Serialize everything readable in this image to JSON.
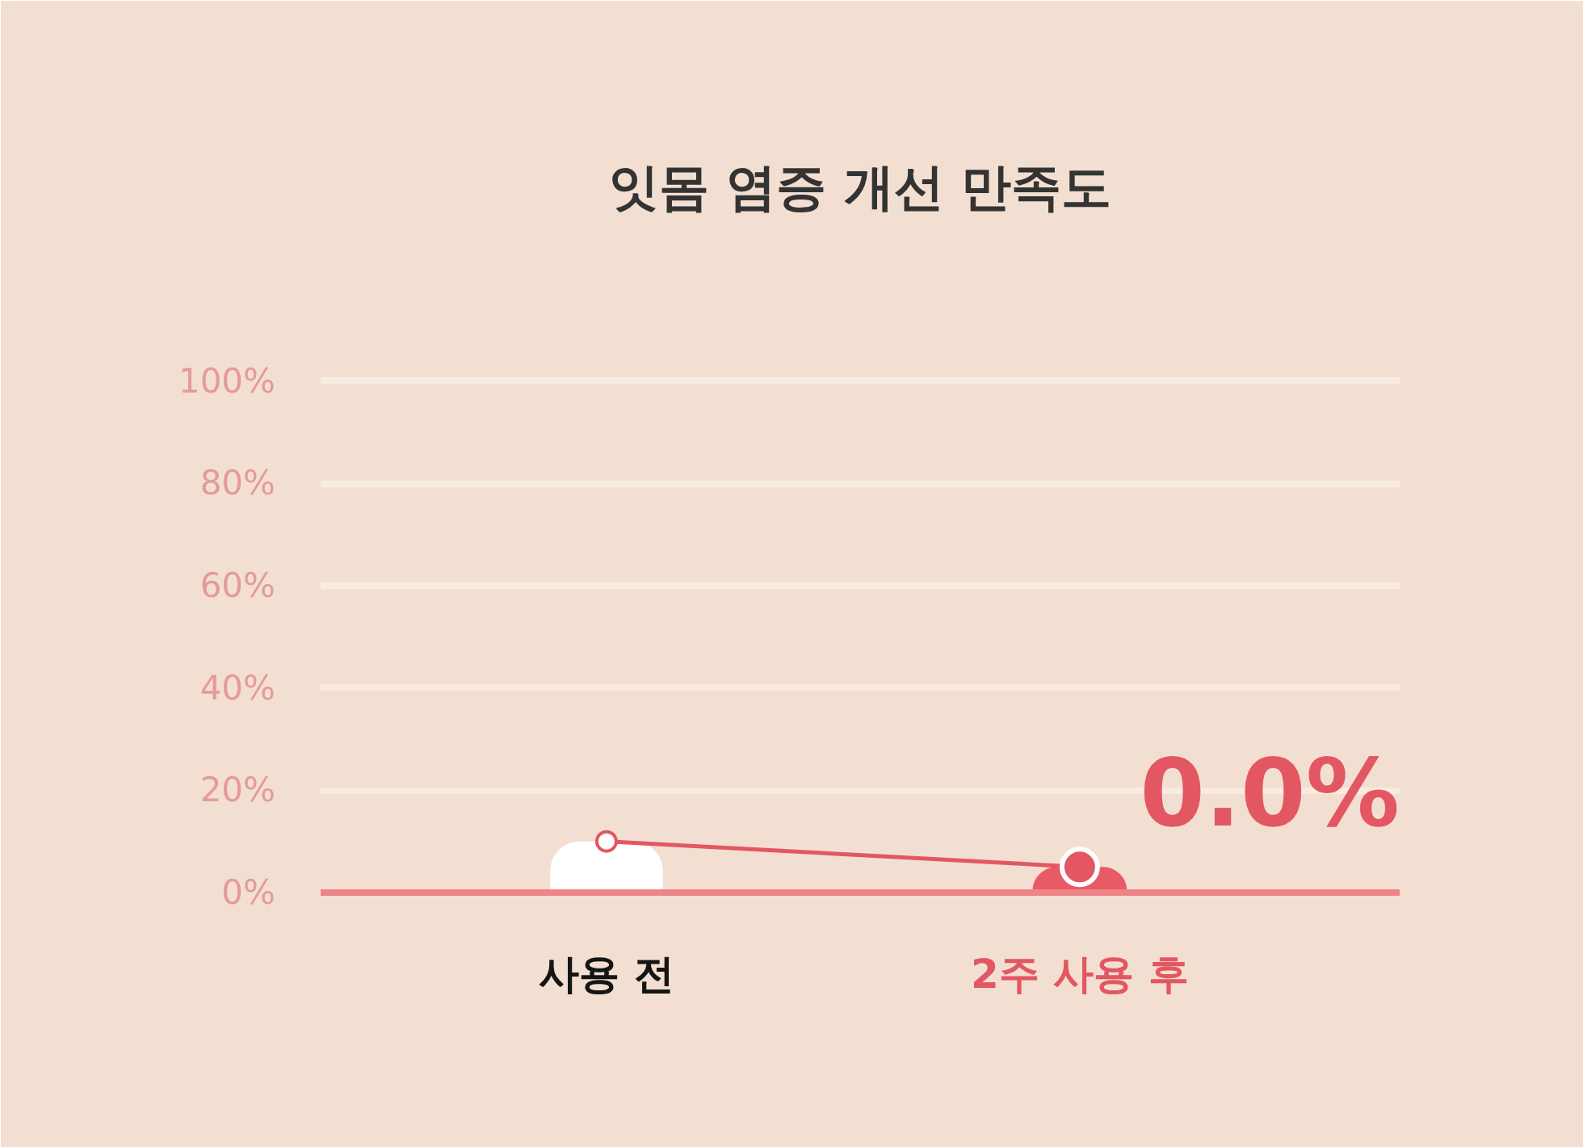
{
  "chart_data": {
    "type": "line",
    "title": "잇몸 염증 개선 만족도",
    "categories": [
      "사용 전",
      "2주 사용 후"
    ],
    "series": [
      {
        "type": "bar",
        "colors": [
          "#ffffff",
          "#e85a66"
        ],
        "values": [
          10,
          5
        ]
      },
      {
        "color": "#e35762",
        "values": [
          10,
          5
        ]
      }
    ],
    "ylim": [
      0,
      102
    ],
    "yticks": [
      {
        "value": 0,
        "label": "0%"
      },
      {
        "value": 20,
        "label": "20%"
      },
      {
        "value": 40,
        "label": "40%"
      },
      {
        "value": 60,
        "label": "60%"
      },
      {
        "value": 80,
        "label": "80%"
      },
      {
        "value": 100,
        "label": "100%"
      }
    ],
    "grid": "y",
    "marker": "circle",
    "annotations": [
      "0.0%"
    ]
  }
}
